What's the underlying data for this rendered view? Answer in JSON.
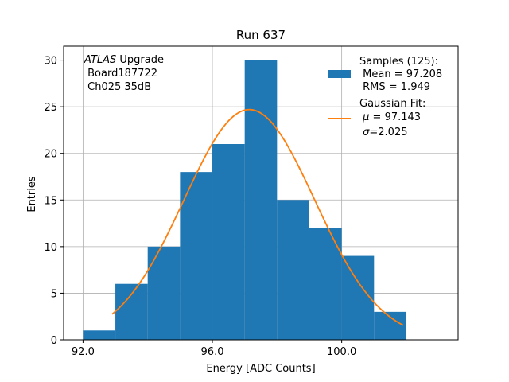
{
  "chart_data": {
    "type": "bar",
    "title": "Run 637",
    "xlabel": "Energy [ADC Counts]",
    "ylabel": "Entries",
    "xlim": [
      91.4,
      103.6
    ],
    "ylim": [
      0,
      31.5
    ],
    "xticks": [
      92,
      96,
      100
    ],
    "xtick_labels": [
      "92.0",
      "96.0",
      "100.0"
    ],
    "yticks": [
      0,
      5,
      10,
      15,
      20,
      25,
      30
    ],
    "ytick_labels": [
      "0",
      "5",
      "10",
      "15",
      "20",
      "25",
      "30"
    ],
    "grid": true,
    "bar_color": "#1f77b4",
    "fit_color": "#ff7f0e",
    "histogram": {
      "name": "Samples",
      "bins": [
        {
          "left": 92,
          "right": 93,
          "count": 1
        },
        {
          "left": 93,
          "right": 94,
          "count": 6
        },
        {
          "left": 94,
          "right": 95,
          "count": 10
        },
        {
          "left": 95,
          "right": 96,
          "count": 18
        },
        {
          "left": 96,
          "right": 97,
          "count": 21
        },
        {
          "left": 97,
          "right": 98,
          "count": 30
        },
        {
          "left": 98,
          "right": 99,
          "count": 15
        },
        {
          "left": 99,
          "right": 100,
          "count": 12
        },
        {
          "left": 100,
          "right": 101,
          "count": 9
        },
        {
          "left": 101,
          "right": 102,
          "count": 3
        }
      ]
    },
    "fit": {
      "name": "Gaussian Fit",
      "mu": 97.143,
      "sigma": 2.025,
      "amplitude": 24.7,
      "x_range": [
        92.9,
        101.9
      ]
    },
    "annotation": {
      "line1_italic": "ATLAS",
      "line1_rest": " Upgrade",
      "line2": " Board187722",
      "line3": " Ch025 35dB"
    },
    "legend": {
      "placement": "upper right",
      "samples_title": "Samples (125):",
      "samples_mean": " Mean = 97.208",
      "samples_rms": " RMS = 1.949",
      "fit_title": "Gaussian Fit:",
      "fit_mu_symbol": "μ",
      "fit_mu_value": " = 97.143",
      "fit_sigma_symbol": "σ",
      "fit_sigma_value": "=2.025"
    }
  }
}
